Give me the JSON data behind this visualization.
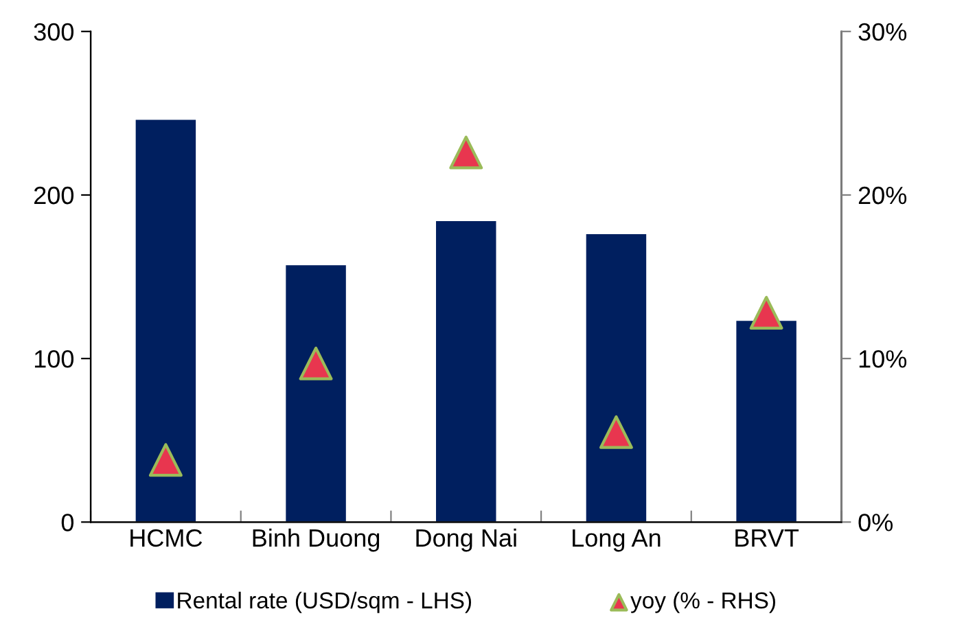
{
  "chart_data": {
    "type": "bar",
    "categories": [
      "HCMC",
      "Binh Duong",
      "Dong Nai",
      "Long An",
      "BRVT"
    ],
    "series": [
      {
        "name": "Rental rate (USD/sqm - LHS)",
        "color": "#001f5f",
        "values": [
          246,
          157,
          184,
          176,
          123
        ]
      },
      {
        "name": "yoy (% - RHS)",
        "type": "scatter",
        "axis": "y2",
        "color": "#e8364f",
        "values": [
          3.8,
          9.7,
          22.6,
          5.5,
          12.8
        ]
      }
    ],
    "ylim": [
      0,
      300
    ],
    "yticks": [
      0,
      100,
      200,
      300
    ],
    "y2lim": [
      0,
      30
    ],
    "y2ticks": [
      {
        "value": 0,
        "label": "0%"
      },
      {
        "value": 10,
        "label": "10%"
      },
      {
        "value": 20,
        "label": "20%"
      },
      {
        "value": 30,
        "label": "30%"
      }
    ],
    "marker": "triangle",
    "grid": false,
    "legend": "bottom"
  }
}
